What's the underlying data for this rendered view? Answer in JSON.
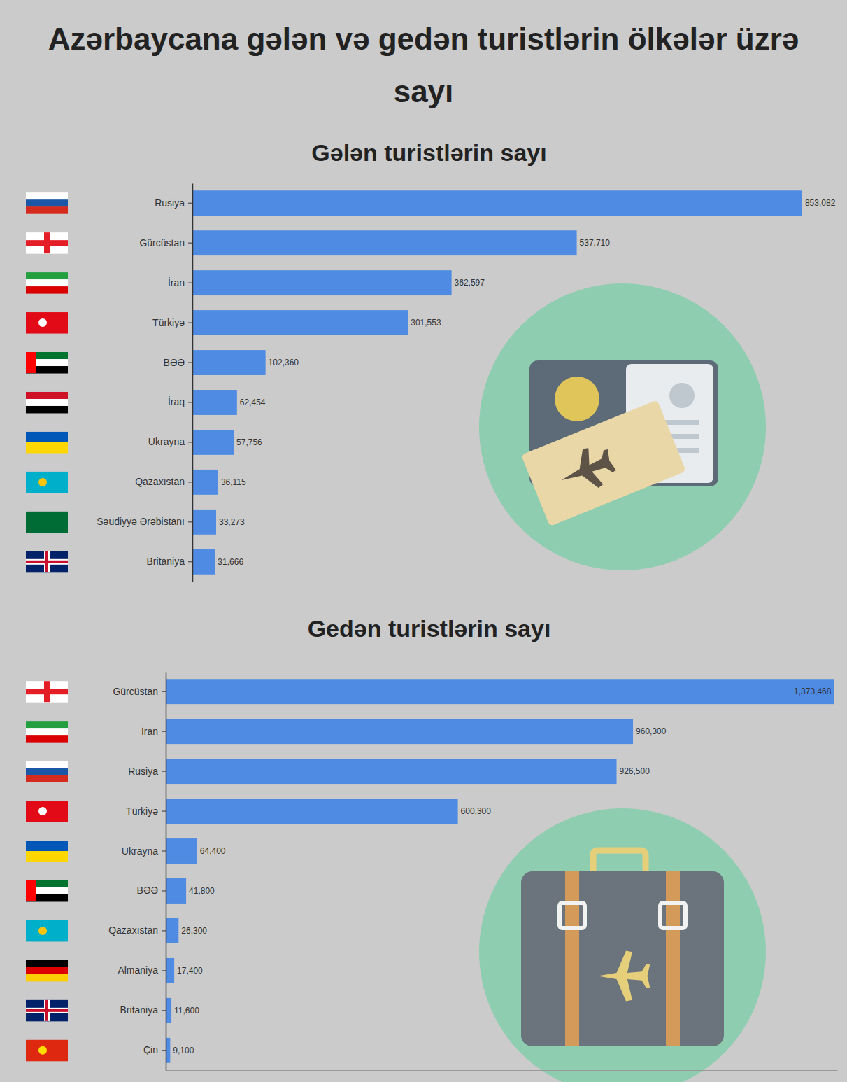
{
  "header": {
    "title": "Azərbaycana gələn və gedən turistlərin ölkələr üzrə sayı"
  },
  "chart_data": [
    {
      "type": "bar",
      "title": "Gələn turistlərin sayı",
      "orientation": "horizontal",
      "categories": [
        "Rusiya",
        "Gürcüstan",
        "İran",
        "Türkiyə",
        "BƏƏ",
        "İraq",
        "Ukrayna",
        "Qazaxıstan",
        "Səudiyyə Ərəbistanı",
        "Britaniya"
      ],
      "values": [
        853082,
        537710,
        362597,
        301553,
        102360,
        62454,
        57756,
        36115,
        33273,
        31666
      ],
      "value_labels": [
        "853,082",
        "537,710",
        "362,597",
        "301,553",
        "102,360",
        "62,454",
        "57,756",
        "36,115",
        "33,273",
        "31,666"
      ],
      "color": "#4f8be3",
      "xlim": [
        0,
        860000
      ],
      "data_labels": true,
      "tick_labels": "y",
      "grid": false
    },
    {
      "type": "bar",
      "title": "Gedən turistlərin sayı",
      "orientation": "horizontal",
      "categories": [
        "Gürcüstan",
        "İran",
        "Rusiya",
        "Türkiyə",
        "Ukrayna",
        "BƏƏ",
        "Qazaxıstan",
        "Almaniya",
        "Britaniya",
        "Çin"
      ],
      "values": [
        1373468,
        960300,
        926500,
        600300,
        64400,
        41800,
        26300,
        17400,
        11600,
        9100
      ],
      "value_labels": [
        "1,373,468",
        "960,300",
        "926,500",
        "600,300",
        "64,400",
        "41,800",
        "26,300",
        "17,400",
        "11,600",
        "9,100"
      ],
      "color": "#4f8be3",
      "xlim": [
        0,
        1380000
      ],
      "data_labels": true,
      "tick_labels": "y",
      "grid": false
    }
  ]
}
